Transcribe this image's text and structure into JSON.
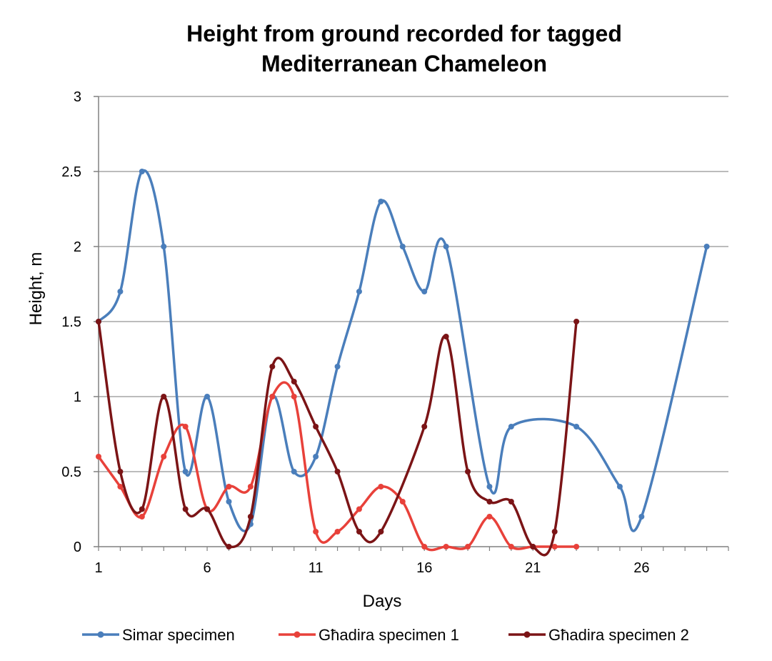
{
  "chart_data": {
    "type": "line",
    "title": [
      "Height from ground recorded for tagged",
      "Mediterranean Chameleon"
    ],
    "xlabel": "Days",
    "ylabel": "Height, m",
    "xlim": [
      1,
      30
    ],
    "ylim": [
      0,
      3
    ],
    "xticks": [
      1,
      6,
      11,
      16,
      21,
      26
    ],
    "yticks": [
      0,
      0.5,
      1,
      1.5,
      2,
      2.5,
      3
    ],
    "grid": true,
    "legend_position": "bottom",
    "series": [
      {
        "name": "Simar specimen",
        "color": "#4a7ebb",
        "x": [
          1,
          2,
          3,
          4,
          5,
          6,
          7,
          8,
          9,
          10,
          11,
          12,
          13,
          14,
          15,
          16,
          17,
          19,
          20,
          23,
          25,
          26,
          29
        ],
        "y": [
          1.5,
          1.7,
          2.5,
          2.0,
          0.5,
          1.0,
          0.3,
          0.15,
          1.0,
          0.5,
          0.6,
          1.2,
          1.7,
          2.3,
          2.0,
          1.7,
          2.0,
          0.4,
          0.8,
          0.8,
          0.4,
          0.2,
          2.0
        ]
      },
      {
        "name": "Għadira specimen 1",
        "color": "#e8413a",
        "x": [
          1,
          2,
          3,
          4,
          5,
          6,
          7,
          8,
          9,
          10,
          11,
          12,
          13,
          14,
          15,
          16,
          17,
          18,
          19,
          20,
          21,
          22,
          23
        ],
        "y": [
          0.6,
          0.4,
          0.2,
          0.6,
          0.8,
          0.25,
          0.4,
          0.4,
          1.0,
          1.0,
          0.1,
          0.1,
          0.25,
          0.4,
          0.3,
          0.0,
          0.0,
          0.0,
          0.2,
          0.0,
          0.0,
          0.0,
          0.0
        ]
      },
      {
        "name": "Għadira specimen 2",
        "color": "#7b1416",
        "x": [
          1,
          2,
          3,
          4,
          5,
          6,
          7,
          8,
          9,
          10,
          11,
          12,
          13,
          14,
          16,
          17,
          18,
          19,
          20,
          21,
          22,
          23
        ],
        "y": [
          1.5,
          0.5,
          0.25,
          1.0,
          0.25,
          0.25,
          0.0,
          0.2,
          1.2,
          1.1,
          0.8,
          0.5,
          0.1,
          0.1,
          0.8,
          1.4,
          0.5,
          0.3,
          0.3,
          0.0,
          0.1,
          1.5
        ]
      }
    ],
    "axis_color": "#808080",
    "grid_color": "#a6a6a6"
  }
}
